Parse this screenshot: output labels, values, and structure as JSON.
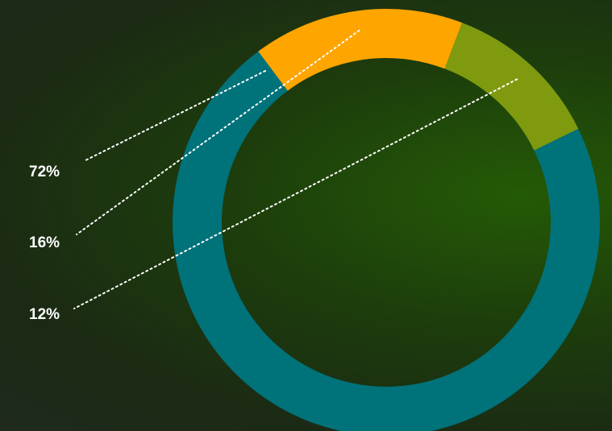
{
  "chart_data": {
    "type": "pie",
    "style": "donut",
    "slices": [
      {
        "label": "72%",
        "value": 72,
        "color": "#00727a"
      },
      {
        "label": "16%",
        "value": 16,
        "color": "#ffa500"
      },
      {
        "label": "12%",
        "value": 12,
        "color": "#7f9a0f"
      }
    ],
    "start_angle_deg": 26,
    "direction": "clockwise",
    "leader_line_color": "#ffffff",
    "label_color": "#ffffff"
  }
}
